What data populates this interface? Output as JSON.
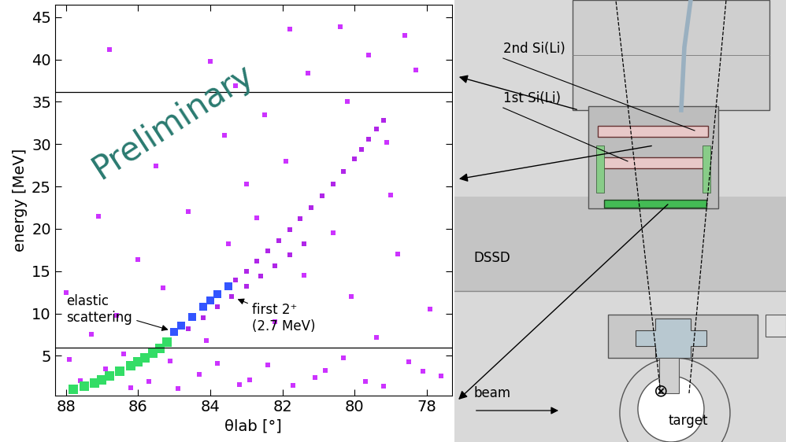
{
  "chart_data": {
    "type": "scatter",
    "x_label": "θlab [°]",
    "y_label": "energy [MeV]",
    "xlim": [
      88.3,
      77.3
    ],
    "ylim": [
      0.3,
      46.5
    ],
    "xticks": [
      88,
      86,
      84,
      82,
      80,
      78
    ],
    "yticks": [
      5,
      10,
      15,
      20,
      25,
      30,
      35,
      40,
      45
    ],
    "grid": false,
    "marker": "s",
    "watermark": "Preliminary",
    "hlines": [
      6.0,
      36.2
    ],
    "series": [
      {
        "color": "#cc33ff",
        "x": [
          87.6,
          86.9,
          86.2,
          85.1,
          84.3,
          83.2,
          82.4,
          81.1,
          80.3,
          79.2,
          78.1,
          77.6,
          87.9,
          86.4,
          85.7,
          84.9,
          83.8,
          82.9,
          81.7,
          80.8,
          79.7,
          78.5,
          87.3,
          86.6,
          85.3,
          84.1,
          83.5,
          82.2,
          81.4,
          80.1,
          79.4,
          78.8,
          88.0,
          86.0,
          84.6,
          83.0,
          81.9,
          80.6,
          79.0,
          77.9,
          82.5,
          80.2,
          79.1,
          81.3,
          84.0,
          86.8,
          85.5,
          83.6,
          78.3,
          87.1,
          81.8,
          80.4,
          79.6,
          78.6,
          83.3,
          82.7
        ],
        "values": [
          2.1,
          3.5,
          1.2,
          4.4,
          2.8,
          1.6,
          3.9,
          2.4,
          4.8,
          1.4,
          3.2,
          2.6,
          4.6,
          5.2,
          2.0,
          1.1,
          4.1,
          2.2,
          1.5,
          3.3,
          2.0,
          4.3,
          7.5,
          9.8,
          13.0,
          6.8,
          18.2,
          9.0,
          14.5,
          12.0,
          7.2,
          17.0,
          12.5,
          16.4,
          22.0,
          25.3,
          28.0,
          19.5,
          24.0,
          10.5,
          33.5,
          35.0,
          30.2,
          38.4,
          39.8,
          41.2,
          27.4,
          31.0,
          38.8,
          21.5,
          43.6,
          43.9,
          40.5,
          42.8,
          36.9,
          21.3
        ]
      },
      {
        "color": "#b026e8",
        "x": [
          83.3,
          83.0,
          82.7,
          82.4,
          82.1,
          81.8,
          81.5,
          81.2,
          80.9,
          80.6,
          80.3,
          80.0,
          79.8,
          79.6,
          79.4,
          79.2,
          84.6,
          84.2,
          83.8,
          83.4,
          83.0,
          82.6,
          82.2,
          81.8,
          81.4
        ],
        "values": [
          14.0,
          15.0,
          16.2,
          17.4,
          18.6,
          19.9,
          21.2,
          22.5,
          23.9,
          25.3,
          26.8,
          28.3,
          29.4,
          30.6,
          31.8,
          32.8,
          8.2,
          9.5,
          10.8,
          12.0,
          13.2,
          14.4,
          15.6,
          16.9,
          18.2
        ]
      },
      {
        "color": "#3355ff",
        "x": [
          85.0,
          84.8,
          84.5,
          84.2,
          84.0,
          83.8,
          83.5
        ],
        "values": [
          7.8,
          8.6,
          9.6,
          10.8,
          11.5,
          12.3,
          13.2
        ]
      },
      {
        "color": "#33dd66",
        "x": [
          87.8,
          87.5,
          87.2,
          87.0,
          86.8,
          86.5,
          86.2,
          86.0,
          85.8,
          85.6,
          85.4,
          85.2
        ],
        "values": [
          1.0,
          1.4,
          1.8,
          2.2,
          2.6,
          3.2,
          3.8,
          4.3,
          4.8,
          5.3,
          5.9,
          6.6
        ]
      }
    ],
    "annotations": [
      {
        "text": "elastic\nscattering",
        "x": 85.1,
        "y": 8.0
      },
      {
        "text": "first 2⁺\n(2.7 MeV)",
        "x": 83.3,
        "y": 11.8
      }
    ]
  },
  "diagram": {
    "labels": {
      "second": "2nd Si(Li)",
      "first": "1st Si(Li)",
      "dssd": "DSSD",
      "beam": "beam",
      "target": "target"
    },
    "target_symbol": "⊗"
  }
}
